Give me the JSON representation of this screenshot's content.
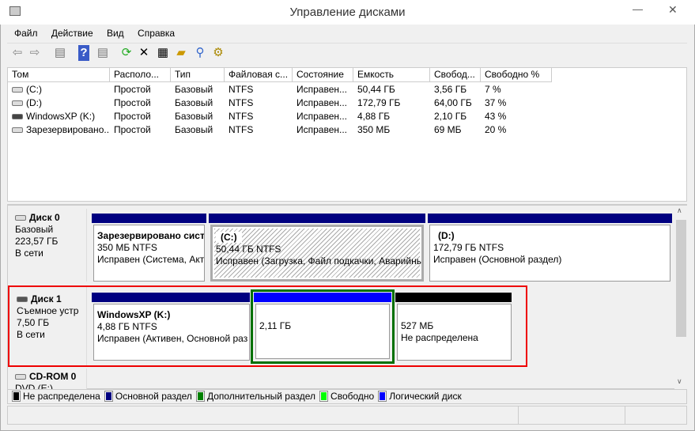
{
  "window": {
    "title": "Управление дисками",
    "minimize": "—",
    "close": "✕"
  },
  "menu": [
    "Файл",
    "Действие",
    "Вид",
    "Справка"
  ],
  "toolbar": [
    "back-icon",
    "forward-icon",
    "show-hide-console-tree-icon",
    "help-icon",
    "show-hide-action-pane-icon",
    "refresh-icon",
    "delete-icon",
    "properties-icon",
    "open-icon",
    "explore-icon",
    "settings-icon"
  ],
  "volumes": {
    "columns": [
      "Том",
      "Располо...",
      "Тип",
      "Файловая с...",
      "Состояние",
      "Емкость",
      "Свобод...",
      "Свободно %"
    ],
    "rows": [
      [
        "(C:)",
        "Простой",
        "Базовый",
        "NTFS",
        "Исправен...",
        "50,44 ГБ",
        "3,56 ГБ",
        "7 %"
      ],
      [
        "(D:)",
        "Простой",
        "Базовый",
        "NTFS",
        "Исправен...",
        "172,79 ГБ",
        "64,00 ГБ",
        "37 %"
      ],
      [
        "WindowsXP (K:)",
        "Простой",
        "Базовый",
        "NTFS",
        "Исправен...",
        "4,88 ГБ",
        "2,10 ГБ",
        "43 %"
      ],
      [
        "Зарезервировано...",
        "Простой",
        "Базовый",
        "NTFS",
        "Исправен...",
        "350 МБ",
        "69 МБ",
        "20 %"
      ]
    ]
  },
  "disks": [
    {
      "name": "Диск 0",
      "type": "Базовый",
      "size": "223,57 ГБ",
      "status": "В сети",
      "partitions": [
        {
          "title": "Зарезервировано систе",
          "size": "350 МБ NTFS",
          "state": "Исправен (Система, Акт"
        },
        {
          "title": "(C:)",
          "size": "50,44 ГБ NTFS",
          "state": "Исправен (Загрузка, Файл подкачки, Аварийны"
        },
        {
          "title": "(D:)",
          "size": "172,79 ГБ NTFS",
          "state": "Исправен (Основной раздел)"
        }
      ]
    },
    {
      "name": "Диск 1",
      "type": "Съемное устрой",
      "size": "7,50 ГБ",
      "status": "В сети",
      "partitions": [
        {
          "title": "WindowsXP  (K:)",
          "size": "4,88 ГБ NTFS",
          "state": "Исправен (Активен, Основной раз"
        },
        {
          "size": "2,11 ГБ"
        },
        {
          "size": "527 МБ",
          "state": "Не распределена"
        }
      ]
    },
    {
      "name": "CD-ROM 0",
      "type": "DVD (E:)"
    }
  ],
  "legend": [
    {
      "label": "Не распределена",
      "color": "#000000"
    },
    {
      "label": "Основной раздел",
      "color": "#000080"
    },
    {
      "label": "Дополнительный раздел",
      "color": "#008000"
    },
    {
      "label": "Свободно",
      "color": "#00ff00"
    },
    {
      "label": "Логический диск",
      "color": "#0000ff"
    }
  ]
}
